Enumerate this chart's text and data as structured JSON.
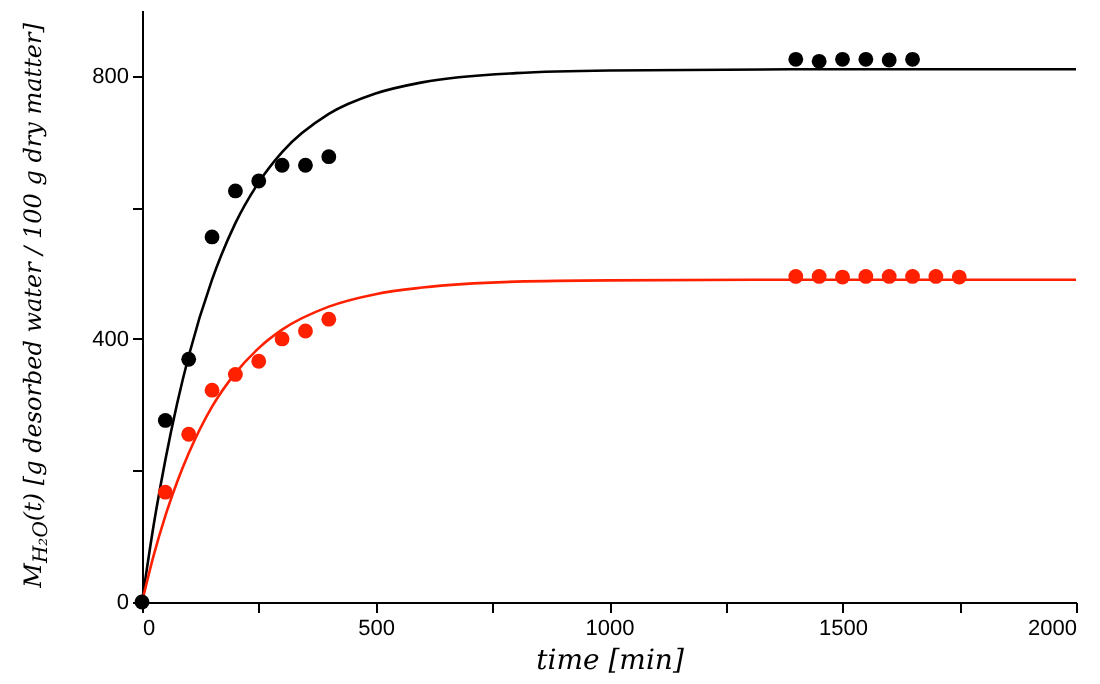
{
  "chart_data": {
    "type": "scatter",
    "xlabel": "time [min]",
    "ylabel": "M$_{H₂O}$(t) [g desorbed water / 100 g dry matter]",
    "xlim": [
      0,
      2000
    ],
    "ylim": [
      0,
      900
    ],
    "xticks": [
      0,
      {
        "value": 250,
        "label": null
      },
      500,
      {
        "value": 750,
        "label": null
      },
      1000,
      {
        "value": 1250,
        "label": null
      },
      1500,
      {
        "value": 1750,
        "label": null
      },
      2000
    ],
    "yticks": [
      0,
      {
        "value": 200,
        "label": null
      },
      400,
      {
        "value": 600,
        "label": null
      },
      800
    ],
    "grid": false,
    "marker": "circle",
    "series": [
      {
        "type": "line",
        "marker": "none",
        "color": "#000000",
        "x": [
          0,
          25,
          50,
          75,
          100,
          150,
          200,
          250,
          300,
          400,
          500,
          600,
          800,
          1000,
          1500,
          2000
        ],
        "values": [
          0,
          117,
          216,
          301,
          374,
          490,
          576,
          638,
          684,
          742,
          773,
          790,
          804,
          808,
          810,
          810
        ]
      },
      {
        "type": "line",
        "marker": "none",
        "color": "#ff2000",
        "x": [
          0,
          25,
          50,
          75,
          100,
          150,
          200,
          250,
          300,
          400,
          500,
          600,
          800,
          1000,
          1500,
          2000
        ],
        "values": [
          0,
          71,
          131,
          182,
          226,
          297,
          348,
          386,
          414,
          449,
          468,
          478,
          487,
          489,
          490,
          490
        ]
      },
      {
        "color": "#000000",
        "x": [
          0,
          50,
          100,
          150,
          200,
          250,
          300,
          350,
          400,
          1400,
          1450,
          1500,
          1550,
          1600,
          1650
        ],
        "values": [
          0,
          276,
          369,
          555,
          625,
          640,
          664,
          664,
          677,
          825,
          822,
          825,
          825,
          824,
          825
        ]
      },
      {
        "color": "#ff2000",
        "x": [
          50,
          100,
          150,
          200,
          250,
          300,
          350,
          400,
          1400,
          1450,
          1500,
          1550,
          1600,
          1650,
          1700,
          1750
        ],
        "values": [
          167,
          255,
          322,
          346,
          366,
          400,
          412,
          430,
          495,
          495,
          494,
          495,
          495,
          495,
          495,
          494
        ]
      }
    ]
  }
}
